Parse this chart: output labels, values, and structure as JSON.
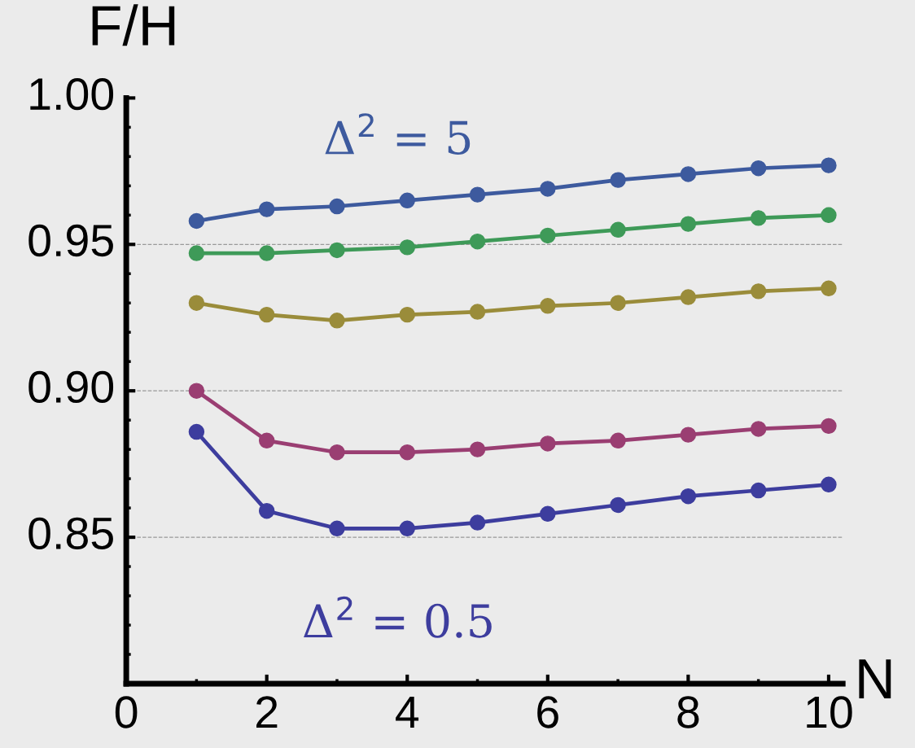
{
  "chart_data": {
    "type": "line",
    "xlabel": "N",
    "ylabel": "F/H",
    "x": [
      1,
      2,
      3,
      4,
      5,
      6,
      7,
      8,
      9,
      10
    ],
    "series": [
      {
        "color": "#3d5a9e",
        "values": [
          0.958,
          0.962,
          0.963,
          0.965,
          0.967,
          0.969,
          0.972,
          0.974,
          0.976,
          0.977
        ]
      },
      {
        "color": "#3e9a58",
        "values": [
          0.947,
          0.947,
          0.948,
          0.949,
          0.951,
          0.953,
          0.955,
          0.957,
          0.959,
          0.96
        ]
      },
      {
        "color": "#9a8c3a",
        "values": [
          0.93,
          0.926,
          0.924,
          0.926,
          0.927,
          0.929,
          0.93,
          0.932,
          0.934,
          0.935
        ]
      },
      {
        "color": "#9a3e72",
        "values": [
          0.9,
          0.883,
          0.879,
          0.879,
          0.88,
          0.882,
          0.883,
          0.885,
          0.887,
          0.888
        ]
      },
      {
        "color": "#3d3d9e",
        "values": [
          0.886,
          0.859,
          0.853,
          0.853,
          0.855,
          0.858,
          0.861,
          0.864,
          0.866,
          0.868
        ]
      }
    ],
    "xlim": [
      0,
      10.2
    ],
    "ylim": [
      0.8,
      1.0
    ],
    "xticks": [
      0,
      2,
      4,
      6,
      8,
      10
    ],
    "yticks": [
      {
        "value": 0.85,
        "label": "0.85"
      },
      {
        "value": 0.9,
        "label": "0.90"
      },
      {
        "value": 0.95,
        "label": "0.95"
      },
      {
        "value": 1.0,
        "label": "1.00"
      }
    ],
    "marker": "circle",
    "line_style": "solid",
    "ref_lines": [
      {
        "axis": "y",
        "value": 0.85,
        "color": "#999999",
        "line_style": "dashed"
      },
      {
        "axis": "y",
        "value": 0.9,
        "color": "#999999",
        "line_style": "dashed"
      },
      {
        "axis": "y",
        "value": 0.95,
        "color": "#999999",
        "line_style": "dashed"
      }
    ],
    "annotations": [
      "Δ$^{2}$ = 5",
      "Δ$^{2}$ = 0.5"
    ]
  }
}
